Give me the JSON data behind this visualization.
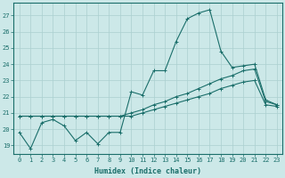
{
  "xlabel": "Humidex (Indice chaleur)",
  "xlim": [
    -0.5,
    23.5
  ],
  "ylim": [
    18.5,
    27.8
  ],
  "yticks": [
    19,
    20,
    21,
    22,
    23,
    24,
    25,
    26,
    27
  ],
  "xticks": [
    0,
    1,
    2,
    3,
    4,
    5,
    6,
    7,
    8,
    9,
    10,
    11,
    12,
    13,
    14,
    15,
    16,
    17,
    18,
    19,
    20,
    21,
    22,
    23
  ],
  "bg_color": "#cce8e8",
  "grid_color": "#aacfcf",
  "line_color": "#1a6e6a",
  "line1_x": [
    0,
    1,
    2,
    3,
    4,
    5,
    6,
    7,
    8,
    9,
    10,
    11,
    12,
    13,
    14,
    15,
    16,
    17,
    18,
    19,
    20,
    21,
    22,
    23
  ],
  "line1_y": [
    19.8,
    18.8,
    20.4,
    20.6,
    20.2,
    19.3,
    19.8,
    19.1,
    19.8,
    19.8,
    22.3,
    22.1,
    23.6,
    23.6,
    25.4,
    26.8,
    27.15,
    27.35,
    24.8,
    23.8,
    23.9,
    24.0,
    21.8,
    21.5
  ],
  "line2_x": [
    0,
    1,
    2,
    3,
    4,
    5,
    6,
    7,
    8,
    9,
    10,
    11,
    12,
    13,
    14,
    15,
    16,
    17,
    18,
    19,
    20,
    21,
    22,
    23
  ],
  "line2_y": [
    20.8,
    20.8,
    20.8,
    20.8,
    20.8,
    20.8,
    20.8,
    20.8,
    20.8,
    20.8,
    21.0,
    21.2,
    21.5,
    21.7,
    22.0,
    22.2,
    22.5,
    22.8,
    23.1,
    23.3,
    23.6,
    23.7,
    21.7,
    21.5
  ],
  "line3_x": [
    0,
    1,
    2,
    3,
    4,
    5,
    6,
    7,
    8,
    9,
    10,
    11,
    12,
    13,
    14,
    15,
    16,
    17,
    18,
    19,
    20,
    21,
    22,
    23
  ],
  "line3_y": [
    20.8,
    20.8,
    20.8,
    20.8,
    20.8,
    20.8,
    20.8,
    20.8,
    20.8,
    20.8,
    20.8,
    21.0,
    21.2,
    21.4,
    21.6,
    21.8,
    22.0,
    22.2,
    22.5,
    22.7,
    22.9,
    23.0,
    21.5,
    21.4
  ]
}
